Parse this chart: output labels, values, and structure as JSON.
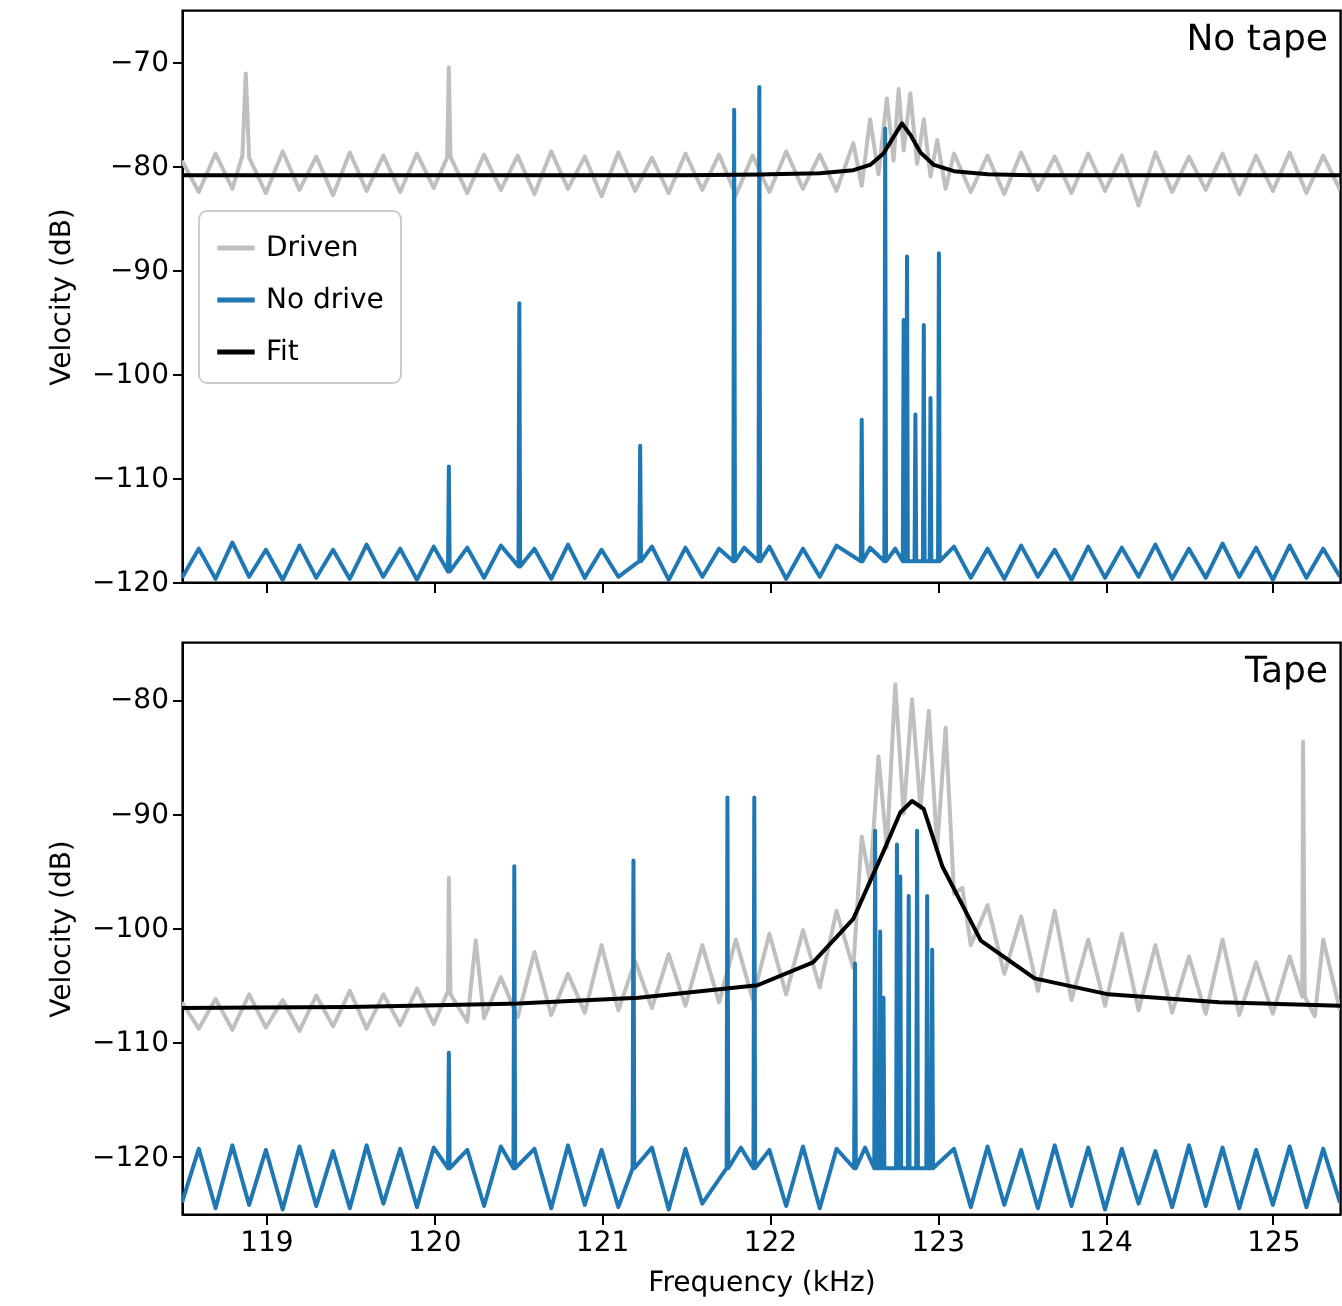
{
  "chart_data": [
    {
      "type": "line",
      "annotations": [
        "No tape"
      ],
      "ylabel": "Velocity (dB)",
      "xlim": [
        118.5,
        125.4
      ],
      "xticks": [
        119,
        120,
        121,
        122,
        123,
        124,
        125
      ],
      "ylim": [
        -120,
        -65
      ],
      "yticks": [
        -120,
        -110,
        -100,
        -90,
        -80,
        -70
      ],
      "tick_labels": "y",
      "legend": "top left",
      "grid": false,
      "series": [
        {
          "name": "Driven",
          "color": "#bfbfbf",
          "x": [
            118.5,
            118.6,
            118.7,
            118.8,
            118.86,
            118.88,
            118.9,
            119.0,
            119.1,
            119.2,
            119.3,
            119.4,
            119.5,
            119.6,
            119.7,
            119.8,
            119.9,
            120.0,
            120.08,
            120.09,
            120.1,
            120.2,
            120.3,
            120.4,
            120.5,
            120.6,
            120.7,
            120.8,
            120.9,
            121.0,
            121.1,
            121.2,
            121.3,
            121.4,
            121.5,
            121.6,
            121.7,
            121.8,
            121.9,
            122.0,
            122.1,
            122.2,
            122.3,
            122.4,
            122.5,
            122.55,
            122.6,
            122.65,
            122.7,
            122.74,
            122.77,
            122.8,
            122.84,
            122.88,
            122.92,
            122.96,
            123.0,
            123.05,
            123.1,
            123.2,
            123.3,
            123.4,
            123.5,
            123.6,
            123.7,
            123.8,
            123.9,
            124.0,
            124.1,
            124.2,
            124.3,
            124.4,
            124.5,
            124.6,
            124.7,
            124.8,
            124.9,
            125.0,
            125.1,
            125.2,
            125.3,
            125.4
          ],
          "values": [
            -79.5,
            -82.5,
            -78.8,
            -82.2,
            -79,
            -71.1,
            -79.2,
            -82.6,
            -78.6,
            -82.3,
            -79.1,
            -82.8,
            -78.7,
            -82.4,
            -79.0,
            -82.5,
            -78.8,
            -82.1,
            -79.2,
            -70.5,
            -79.1,
            -82.6,
            -78.9,
            -82.3,
            -79.0,
            -82.7,
            -78.6,
            -82.2,
            -79.1,
            -82.9,
            -78.7,
            -82.4,
            -79.2,
            -82.6,
            -78.8,
            -82.3,
            -78.9,
            -82.8,
            -79.0,
            -82.5,
            -78.6,
            -82.2,
            -78.9,
            -82.4,
            -77.8,
            -81.9,
            -75.5,
            -80.8,
            -73.5,
            -79.5,
            -72.6,
            -78.5,
            -73.0,
            -79.8,
            -75.5,
            -81.0,
            -77.5,
            -82.2,
            -78.8,
            -82.5,
            -79.0,
            -82.7,
            -78.7,
            -82.3,
            -79.1,
            -82.6,
            -78.8,
            -82.4,
            -79.0,
            -83.8,
            -78.7,
            -82.5,
            -79.1,
            -82.3,
            -78.8,
            -82.7,
            -79.0,
            -82.4,
            -78.7,
            -82.6,
            -79.0,
            -82.3
          ]
        },
        {
          "name": "No drive",
          "color": "#1f77b4",
          "x": [
            118.5,
            118.6,
            118.7,
            118.8,
            118.9,
            119.0,
            119.1,
            119.2,
            119.3,
            119.4,
            119.5,
            119.6,
            119.7,
            119.8,
            119.9,
            120.0,
            120.085,
            120.09,
            120.095,
            120.2,
            120.3,
            120.4,
            120.505,
            120.51,
            120.515,
            120.6,
            120.7,
            120.8,
            120.9,
            121.0,
            121.1,
            121.225,
            121.23,
            121.235,
            121.3,
            121.4,
            121.5,
            121.6,
            121.7,
            121.785,
            121.79,
            121.795,
            121.85,
            121.935,
            121.94,
            121.945,
            122.0,
            122.1,
            122.2,
            122.3,
            122.4,
            122.545,
            122.55,
            122.555,
            122.6,
            122.685,
            122.69,
            122.695,
            122.75,
            122.795,
            122.8,
            122.805,
            122.815,
            122.82,
            122.825,
            122.865,
            122.87,
            122.875,
            122.915,
            122.92,
            122.925,
            122.955,
            122.96,
            122.965,
            123.005,
            123.01,
            123.015,
            123.1,
            123.2,
            123.3,
            123.4,
            123.5,
            123.6,
            123.7,
            123.8,
            123.9,
            124.0,
            124.1,
            124.2,
            124.3,
            124.4,
            124.5,
            124.6,
            124.7,
            124.8,
            124.9,
            125.0,
            125.1,
            125.2,
            125.3,
            125.4
          ],
          "values": [
            -119.6,
            -116.8,
            -119.7,
            -116.2,
            -119.5,
            -116.9,
            -119.8,
            -116.5,
            -119.6,
            -116.9,
            -119.7,
            -116.4,
            -119.5,
            -116.8,
            -119.8,
            -116.6,
            -119.0,
            -108.9,
            -119.0,
            -116.7,
            -119.6,
            -116.5,
            -118.5,
            -93.2,
            -118.5,
            -116.8,
            -119.7,
            -116.4,
            -119.6,
            -116.9,
            -119.5,
            -118.0,
            -106.9,
            -118.0,
            -116.6,
            -119.8,
            -116.7,
            -119.5,
            -116.8,
            -118.0,
            -74.6,
            -118.0,
            -116.7,
            -118.0,
            -72.4,
            -118.0,
            -116.6,
            -119.7,
            -116.8,
            -119.5,
            -116.5,
            -118.0,
            -104.4,
            -118.0,
            -116.7,
            -118.0,
            -76.4,
            -118.0,
            -116.8,
            -118.0,
            -94.8,
            -118.0,
            -118.0,
            -88.7,
            -118.0,
            -118.0,
            -103.9,
            -118.0,
            -118.0,
            -95.3,
            -118.0,
            -118.0,
            -102.3,
            -118.0,
            -118.0,
            -88.4,
            -118.0,
            -116.6,
            -119.6,
            -116.8,
            -119.7,
            -116.5,
            -119.5,
            -116.9,
            -119.8,
            -116.6,
            -119.6,
            -116.7,
            -119.5,
            -116.4,
            -119.7,
            -116.8,
            -119.6,
            -116.3,
            -119.5,
            -116.7,
            -119.8,
            -116.5,
            -119.6,
            -116.8,
            -119.5
          ]
        },
        {
          "name": "Fit",
          "color": "#000000",
          "x": [
            118.5,
            119.5,
            120.5,
            121.5,
            122.0,
            122.3,
            122.5,
            122.6,
            122.68,
            122.74,
            122.79,
            122.84,
            122.9,
            122.98,
            123.1,
            123.3,
            123.6,
            124.5,
            125.4
          ],
          "values": [
            -80.9,
            -80.9,
            -80.9,
            -80.9,
            -80.8,
            -80.7,
            -80.4,
            -79.9,
            -78.8,
            -77.2,
            -75.9,
            -77.0,
            -78.7,
            -79.9,
            -80.5,
            -80.8,
            -80.9,
            -80.9,
            -80.9
          ]
        }
      ]
    },
    {
      "type": "line",
      "annotations": [
        "Tape"
      ],
      "xlabel": "Frequency (kHz)",
      "ylabel": "Velocity (dB)",
      "xlim": [
        118.5,
        125.4
      ],
      "xticks": [
        119,
        120,
        121,
        122,
        123,
        124,
        125
      ],
      "ylim": [
        -125,
        -75
      ],
      "yticks": [
        -120,
        -110,
        -100,
        -90,
        -80
      ],
      "grid": false,
      "series": [
        {
          "color": "#bfbfbf",
          "x": [
            118.5,
            118.6,
            118.7,
            118.8,
            118.9,
            119.0,
            119.1,
            119.2,
            119.3,
            119.4,
            119.5,
            119.6,
            119.7,
            119.8,
            119.9,
            120.0,
            120.085,
            120.09,
            120.1,
            120.2,
            120.25,
            120.3,
            120.4,
            120.5,
            120.6,
            120.7,
            120.8,
            120.9,
            121.0,
            121.1,
            121.2,
            121.3,
            121.4,
            121.5,
            121.6,
            121.7,
            121.8,
            121.9,
            122.0,
            122.1,
            122.2,
            122.3,
            122.4,
            122.5,
            122.55,
            122.6,
            122.65,
            122.7,
            122.75,
            122.8,
            122.85,
            122.9,
            122.95,
            123.0,
            123.05,
            123.1,
            123.15,
            123.2,
            123.3,
            123.4,
            123.5,
            123.6,
            123.7,
            123.8,
            123.9,
            124.0,
            124.1,
            124.2,
            124.3,
            124.4,
            124.5,
            124.6,
            124.7,
            124.8,
            124.9,
            125.0,
            125.1,
            125.175,
            125.18,
            125.19,
            125.25,
            125.3,
            125.4
          ],
          "values": [
            -106.5,
            -108.8,
            -106.2,
            -108.9,
            -105.8,
            -108.7,
            -106.3,
            -109.0,
            -105.9,
            -108.6,
            -105.5,
            -108.8,
            -105.8,
            -108.5,
            -105.3,
            -108.4,
            -105.5,
            -95.6,
            -105.8,
            -108.2,
            -101.1,
            -107.9,
            -104.3,
            -107.8,
            -102.1,
            -107.6,
            -104.0,
            -107.4,
            -101.5,
            -107.2,
            -102.9,
            -107.0,
            -102.3,
            -106.8,
            -101.5,
            -106.5,
            -101.0,
            -106.2,
            -100.5,
            -105.8,
            -100.2,
            -105.2,
            -98.5,
            -103.5,
            -92.0,
            -96.0,
            -85.0,
            -93.0,
            -78.7,
            -90.0,
            -80.0,
            -89.5,
            -81.0,
            -93.0,
            -82.5,
            -97.0,
            -96.5,
            -101.5,
            -98.0,
            -104.0,
            -99.0,
            -105.5,
            -98.5,
            -106.3,
            -101.0,
            -106.8,
            -100.5,
            -107.2,
            -101.5,
            -107.4,
            -102.5,
            -107.5,
            -101.0,
            -107.6,
            -103.0,
            -107.5,
            -102.5,
            -106.0,
            -83.7,
            -106.0,
            -107.7,
            -101.0,
            -107.2
          ]
        },
        {
          "color": "#1f77b4",
          "x": [
            118.5,
            118.6,
            118.7,
            118.8,
            118.9,
            119.0,
            119.1,
            119.2,
            119.3,
            119.4,
            119.5,
            119.6,
            119.7,
            119.8,
            119.9,
            120.0,
            120.085,
            120.09,
            120.095,
            120.2,
            120.3,
            120.4,
            120.475,
            120.48,
            120.485,
            120.6,
            120.7,
            120.8,
            120.9,
            121.0,
            121.1,
            121.185,
            121.19,
            121.195,
            121.3,
            121.4,
            121.5,
            121.6,
            121.745,
            121.75,
            121.755,
            121.83,
            121.905,
            121.91,
            121.915,
            122.0,
            122.1,
            122.2,
            122.3,
            122.4,
            122.505,
            122.51,
            122.515,
            122.57,
            122.625,
            122.63,
            122.635,
            122.655,
            122.66,
            122.665,
            122.675,
            122.68,
            122.685,
            122.755,
            122.76,
            122.765,
            122.775,
            122.78,
            122.785,
            122.825,
            122.83,
            122.835,
            122.875,
            122.88,
            122.885,
            122.935,
            122.94,
            122.945,
            122.965,
            122.97,
            122.975,
            123.1,
            123.2,
            123.3,
            123.4,
            123.5,
            123.6,
            123.7,
            123.8,
            123.9,
            124.0,
            124.1,
            124.2,
            124.3,
            124.4,
            124.5,
            124.6,
            124.7,
            124.8,
            124.9,
            125.0,
            125.1,
            125.2,
            125.3,
            125.4
          ],
          "values": [
            -124.0,
            -119.3,
            -124.5,
            -119.0,
            -124.2,
            -119.4,
            -124.6,
            -119.1,
            -124.3,
            -119.5,
            -124.5,
            -119.0,
            -124.1,
            -119.3,
            -124.4,
            -119.2,
            -121.0,
            -110.9,
            -121.0,
            -119.4,
            -124.3,
            -119.1,
            -121.0,
            -94.6,
            -121.0,
            -119.3,
            -124.5,
            -119.0,
            -124.2,
            -119.4,
            -124.4,
            -121.0,
            -94.1,
            -121.0,
            -119.2,
            -124.6,
            -119.3,
            -124.1,
            -121.0,
            -88.6,
            -121.0,
            -119.2,
            -121.0,
            -88.6,
            -121.0,
            -119.4,
            -124.3,
            -119.1,
            -124.5,
            -119.3,
            -121.0,
            -103.1,
            -121.0,
            -119.2,
            -121.0,
            -91.5,
            -121.0,
            -121.0,
            -100.3,
            -121.0,
            -121.0,
            -106.1,
            -121.0,
            -121.0,
            -92.7,
            -121.0,
            -121.0,
            -95.5,
            -121.0,
            -121.0,
            -97.2,
            -121.0,
            -121.0,
            -91.5,
            -121.0,
            -121.0,
            -97.2,
            -121.0,
            -121.0,
            -101.9,
            -121.0,
            -119.3,
            -124.4,
            -119.1,
            -124.2,
            -119.4,
            -124.5,
            -119.0,
            -124.3,
            -119.2,
            -124.6,
            -119.3,
            -124.1,
            -119.5,
            -124.4,
            -119.0,
            -124.3,
            -119.2,
            -124.5,
            -119.4,
            -124.2,
            -119.1,
            -124.4,
            -119.3,
            -124.0
          ]
        },
        {
          "color": "#000000",
          "x": [
            118.5,
            119.5,
            120.5,
            121.22,
            121.93,
            122.26,
            122.5,
            122.68,
            122.78,
            122.85,
            122.92,
            123.03,
            123.26,
            123.58,
            124.02,
            124.68,
            125.4
          ],
          "values": [
            -107.0,
            -106.9,
            -106.6,
            -106.1,
            -105.0,
            -103.0,
            -99.2,
            -93.3,
            -89.9,
            -88.9,
            -89.6,
            -94.6,
            -101.1,
            -104.4,
            -105.8,
            -106.5,
            -106.8
          ]
        }
      ]
    }
  ]
}
